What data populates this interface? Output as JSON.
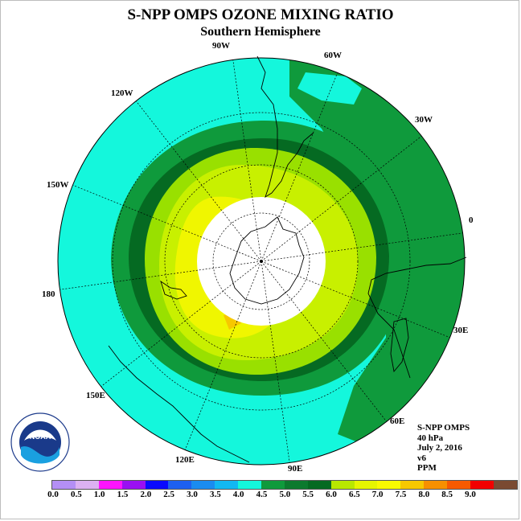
{
  "title": "S-NPP OMPS OZONE MIXING RATIO",
  "subtitle": "Southern Hemisphere",
  "longitude_labels": [
    {
      "id": "lon-90w",
      "text": "90W"
    },
    {
      "id": "lon-60w",
      "text": "60W"
    },
    {
      "id": "lon-30w",
      "text": "30W"
    },
    {
      "id": "lon-0",
      "text": "0"
    },
    {
      "id": "lon-30e",
      "text": "30E"
    },
    {
      "id": "lon-60e",
      "text": "60E"
    },
    {
      "id": "lon-90e",
      "text": "90E"
    },
    {
      "id": "lon-120e",
      "text": "120E"
    },
    {
      "id": "lon-150e",
      "text": "150E"
    },
    {
      "id": "lon-180",
      "text": "180"
    },
    {
      "id": "lon-150w",
      "text": "150W"
    },
    {
      "id": "lon-120w",
      "text": "120W"
    }
  ],
  "info": {
    "instrument": "S-NPP OMPS",
    "level": "40 hPa",
    "date": "July 2, 2016",
    "version": "v6",
    "units": "PPM"
  },
  "logo": {
    "text": "NOAA"
  },
  "colorbar": {
    "ticks": [
      "0.0",
      "0.5",
      "1.0",
      "1.5",
      "2.0",
      "2.5",
      "3.0",
      "3.5",
      "4.0",
      "4.5",
      "5.0",
      "5.5",
      "6.0",
      "6.5",
      "7.0",
      "7.5",
      "8.0",
      "8.5",
      "9.0"
    ],
    "colors": [
      "#b48ff5",
      "#dcb1f2",
      "#ff14ff",
      "#9a10f2",
      "#0a0aff",
      "#1e60f0",
      "#1a8cf0",
      "#12b8f2",
      "#14f7dc",
      "#0f9a3c",
      "#0c7a2e",
      "#056a22",
      "#b8e800",
      "#e6f600",
      "#fafa00",
      "#f7c800",
      "#f79000",
      "#f75a00",
      "#f20000",
      "#7a4a32"
    ]
  },
  "map_colors": {
    "ocean_outer": "#14f7dc",
    "band_45": "#0f9a3c",
    "band_5": "#056a22",
    "band_55": "#99e000",
    "band_6": "#c8f000",
    "band_65": "#f0f600",
    "band_7": "#f7c800",
    "no_data": "#ffffff"
  }
}
